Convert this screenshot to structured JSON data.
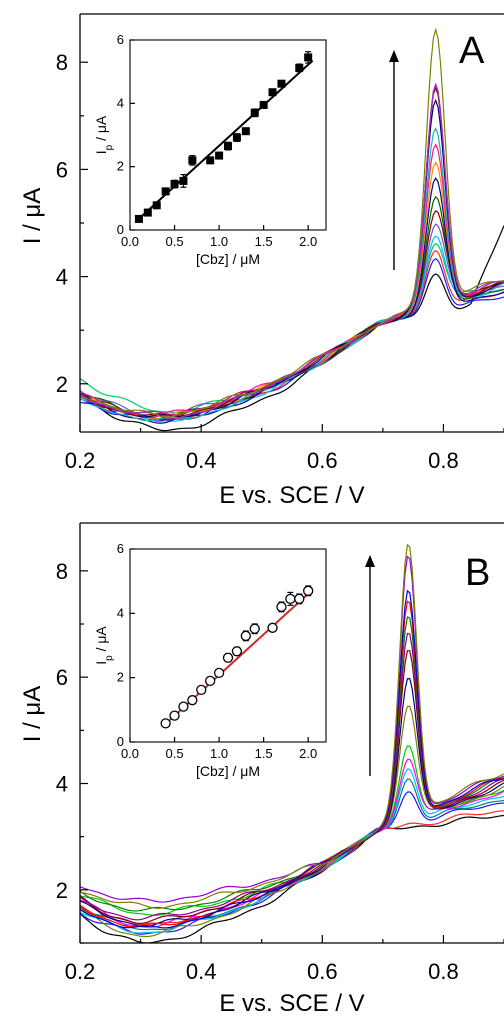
{
  "chart_data": [
    {
      "type": "line",
      "panel_label": "A",
      "xlabel": "E vs. SCE / V",
      "ylabel": "I / μA",
      "xlim": [
        0.2,
        0.9
      ],
      "ylim": [
        1.1,
        8.9
      ],
      "xticks": [
        "0.2",
        "0.4",
        "0.6",
        "0.8"
      ],
      "yticks": [
        "2",
        "4",
        "6",
        "8"
      ],
      "grid": false,
      "series": [
        {
          "color": "#000000",
          "peak_y": 4.05,
          "start_y": 1.78,
          "min_y": 1.13,
          "min_x": 0.34,
          "tail_y": 3.58
        },
        {
          "color": "#1a1aff",
          "peak_y": 4.35,
          "start_y": 1.72,
          "min_y": 1.31,
          "min_x": 0.33,
          "tail_y": 3.62
        },
        {
          "color": "#ff2a2a",
          "peak_y": 4.52,
          "start_y": 1.76,
          "min_y": 1.34,
          "min_x": 0.33,
          "tail_y": 3.7
        },
        {
          "color": "#00cc66",
          "peak_y": 4.66,
          "start_y": 2.1,
          "min_y": 1.48,
          "min_x": 0.34,
          "tail_y": 3.9
        },
        {
          "color": "#00bfff",
          "peak_y": 4.8,
          "start_y": 1.74,
          "min_y": 1.33,
          "min_x": 0.34,
          "tail_y": 3.78
        },
        {
          "color": "#6a5acd",
          "peak_y": 5.0,
          "start_y": 1.9,
          "min_y": 1.42,
          "min_x": 0.32,
          "tail_y": 3.85
        },
        {
          "color": "#800000",
          "peak_y": 5.22,
          "start_y": 1.82,
          "min_y": 1.36,
          "min_x": 0.33,
          "tail_y": 3.92
        },
        {
          "color": "#006400",
          "peak_y": 5.45,
          "start_y": 1.85,
          "min_y": 1.38,
          "min_x": 0.33,
          "tail_y": 3.8
        },
        {
          "color": "#00008b",
          "peak_y": 5.78,
          "start_y": 1.68,
          "min_y": 1.3,
          "min_x": 0.34,
          "tail_y": 3.74
        },
        {
          "color": "#ff8c00",
          "peak_y": 6.07,
          "start_y": 1.76,
          "min_y": 1.38,
          "min_x": 0.33,
          "tail_y": 3.9
        },
        {
          "color": "#ff1493",
          "peak_y": 6.42,
          "start_y": 1.8,
          "min_y": 1.4,
          "min_x": 0.32,
          "tail_y": 3.88
        },
        {
          "color": "#20b2aa",
          "peak_y": 6.75,
          "start_y": 1.7,
          "min_y": 1.31,
          "min_x": 0.34,
          "tail_y": 3.82
        },
        {
          "color": "#000080",
          "peak_y": 7.3,
          "start_y": 1.77,
          "min_y": 1.36,
          "min_x": 0.34,
          "tail_y": 3.84
        },
        {
          "color": "#8b0000",
          "peak_y": 7.55,
          "start_y": 1.76,
          "min_y": 1.38,
          "min_x": 0.33,
          "tail_y": 3.86
        },
        {
          "color": "#c71585",
          "peak_y": 7.62,
          "start_y": 1.8,
          "min_y": 1.42,
          "min_x": 0.33,
          "tail_y": 3.9
        },
        {
          "color": "#9932cc",
          "peak_y": 7.6,
          "start_y": 1.78,
          "min_y": 1.37,
          "min_x": 0.34,
          "tail_y": 3.92
        },
        {
          "color": "#808000",
          "peak_y": 8.62,
          "start_y": 1.82,
          "min_y": 1.41,
          "min_x": 0.33,
          "tail_y": 3.96
        }
      ],
      "peak_x": 0.787,
      "inset": {
        "type": "scatter",
        "marker": "filled-square",
        "xlabel": "[Cbz] / μM",
        "ylabel": "I",
        "ylabel_subscript": "p",
        "ylabel_suffix": " / μA",
        "xlim": [
          0.0,
          2.2
        ],
        "ylim": [
          0,
          6
        ],
        "xticks": [
          "0.0",
          "0.5",
          "1.0",
          "1.5",
          "2.0"
        ],
        "yticks": [
          "0",
          "2",
          "4",
          "6"
        ],
        "points": [
          {
            "x": 0.1,
            "y": 0.35,
            "err": 0.1
          },
          {
            "x": 0.2,
            "y": 0.55,
            "err": 0.1
          },
          {
            "x": 0.3,
            "y": 0.78,
            "err": 0.1
          },
          {
            "x": 0.4,
            "y": 1.22,
            "err": 0.1
          },
          {
            "x": 0.5,
            "y": 1.45,
            "err": 0.12
          },
          {
            "x": 0.6,
            "y": 1.55,
            "err": 0.2
          },
          {
            "x": 0.7,
            "y": 2.2,
            "err": 0.15
          },
          {
            "x": 0.9,
            "y": 2.2,
            "err": 0.1
          },
          {
            "x": 1.0,
            "y": 2.35,
            "err": 0.1
          },
          {
            "x": 1.1,
            "y": 2.65,
            "err": 0.12
          },
          {
            "x": 1.2,
            "y": 2.92,
            "err": 0.12
          },
          {
            "x": 1.3,
            "y": 3.12,
            "err": 0.1
          },
          {
            "x": 1.4,
            "y": 3.7,
            "err": 0.12
          },
          {
            "x": 1.5,
            "y": 3.95,
            "err": 0.1
          },
          {
            "x": 1.6,
            "y": 4.35,
            "err": 0.1
          },
          {
            "x": 1.7,
            "y": 4.62,
            "err": 0.1
          },
          {
            "x": 1.9,
            "y": 5.12,
            "err": 0.12
          },
          {
            "x": 2.0,
            "y": 5.45,
            "err": 0.18
          }
        ],
        "fit": {
          "slope": 2.56,
          "intercept": 0.1,
          "x0": 0.08,
          "x1": 2.05,
          "color": "#000000"
        }
      }
    },
    {
      "type": "line",
      "panel_label": "B",
      "xlabel": "E vs. SCE / V",
      "ylabel": "I / μA",
      "xlim": [
        0.2,
        0.9
      ],
      "ylim": [
        1.0,
        8.9
      ],
      "xticks": [
        "0.2",
        "0.4",
        "0.6",
        "0.8"
      ],
      "yticks": [
        "2",
        "4",
        "6",
        "8"
      ],
      "grid": false,
      "series": [
        {
          "color": "#000000",
          "peak_y": 2.95,
          "start_y": 1.55,
          "min_y": 1.0,
          "min_x": 0.3,
          "tail_y": 3.4
        },
        {
          "color": "#ff2a2a",
          "peak_y": 3.25,
          "start_y": 1.72,
          "min_y": 1.35,
          "min_x": 0.3,
          "tail_y": 3.5
        },
        {
          "color": "#1a1aff",
          "peak_y": 3.85,
          "start_y": 1.58,
          "min_y": 1.18,
          "min_x": 0.3,
          "tail_y": 3.66
        },
        {
          "color": "#008080",
          "peak_y": 4.1,
          "start_y": 1.7,
          "min_y": 1.26,
          "min_x": 0.31,
          "tail_y": 3.72
        },
        {
          "color": "#00bfff",
          "peak_y": 4.3,
          "start_y": 1.62,
          "min_y": 1.2,
          "min_x": 0.3,
          "tail_y": 3.8
        },
        {
          "color": "#00cc00",
          "peak_y": 4.75,
          "start_y": 1.92,
          "min_y": 1.55,
          "min_x": 0.31,
          "tail_y": 3.9
        },
        {
          "color": "#ff00ff",
          "peak_y": 4.5,
          "start_y": 1.82,
          "min_y": 1.32,
          "min_x": 0.3,
          "tail_y": 3.86
        },
        {
          "color": "#808000",
          "peak_y": 5.5,
          "start_y": 1.6,
          "min_y": 1.15,
          "min_x": 0.3,
          "tail_y": 3.92
        },
        {
          "color": "#000080",
          "peak_y": 6.0,
          "start_y": 1.74,
          "min_y": 1.34,
          "min_x": 0.31,
          "tail_y": 3.96
        },
        {
          "color": "#800000",
          "peak_y": 6.5,
          "start_y": 1.8,
          "min_y": 1.4,
          "min_x": 0.3,
          "tail_y": 4.0
        },
        {
          "color": "#8b008b",
          "peak_y": 6.8,
          "start_y": 1.84,
          "min_y": 1.46,
          "min_x": 0.3,
          "tail_y": 4.04
        },
        {
          "color": "#008000",
          "peak_y": 7.1,
          "start_y": 1.95,
          "min_y": 1.6,
          "min_x": 0.31,
          "tail_y": 4.08
        },
        {
          "color": "#ff0000",
          "peak_y": 7.4,
          "start_y": 1.7,
          "min_y": 1.3,
          "min_x": 0.3,
          "tail_y": 4.1
        },
        {
          "color": "#0000cd",
          "peak_y": 7.62,
          "start_y": 1.66,
          "min_y": 1.26,
          "min_x": 0.3,
          "tail_y": 4.12
        },
        {
          "color": "#9400d3",
          "peak_y": 8.3,
          "start_y": 2.1,
          "min_y": 1.78,
          "min_x": 0.3,
          "tail_y": 4.18
        },
        {
          "color": "#808000",
          "peak_y": 8.55,
          "start_y": 2.0,
          "min_y": 1.68,
          "min_x": 0.31,
          "tail_y": 4.22
        }
      ],
      "peak_x": 0.742,
      "inset": {
        "type": "scatter",
        "marker": "open-circle",
        "xlabel": "[Cbz] / μM",
        "ylabel": "I",
        "ylabel_subscript": "p",
        "ylabel_suffix": " / μA",
        "xlim": [
          0.0,
          2.2
        ],
        "ylim": [
          0,
          6
        ],
        "xticks": [
          "0.0",
          "0.5",
          "1.0",
          "1.5",
          "2.0"
        ],
        "yticks": [
          "0",
          "2",
          "4",
          "6"
        ],
        "points": [
          {
            "x": 0.4,
            "y": 0.58,
            "err": 0.1
          },
          {
            "x": 0.5,
            "y": 0.82,
            "err": 0.1
          },
          {
            "x": 0.6,
            "y": 1.1,
            "err": 0.1
          },
          {
            "x": 0.7,
            "y": 1.3,
            "err": 0.1
          },
          {
            "x": 0.8,
            "y": 1.62,
            "err": 0.1
          },
          {
            "x": 0.9,
            "y": 1.9,
            "err": 0.1
          },
          {
            "x": 1.0,
            "y": 2.15,
            "err": 0.1
          },
          {
            "x": 1.1,
            "y": 2.62,
            "err": 0.12
          },
          {
            "x": 1.2,
            "y": 2.82,
            "err": 0.12
          },
          {
            "x": 1.3,
            "y": 3.3,
            "err": 0.15
          },
          {
            "x": 1.4,
            "y": 3.52,
            "err": 0.15
          },
          {
            "x": 1.6,
            "y": 3.55,
            "err": 0.1
          },
          {
            "x": 1.7,
            "y": 4.2,
            "err": 0.15
          },
          {
            "x": 1.8,
            "y": 4.45,
            "err": 0.2
          },
          {
            "x": 1.9,
            "y": 4.45,
            "err": 0.15
          },
          {
            "x": 2.0,
            "y": 4.7,
            "err": 0.15
          }
        ],
        "fit": {
          "slope": 2.53,
          "intercept": -0.45,
          "x0": 0.38,
          "x1": 2.02,
          "color": "#d62728"
        }
      }
    }
  ]
}
